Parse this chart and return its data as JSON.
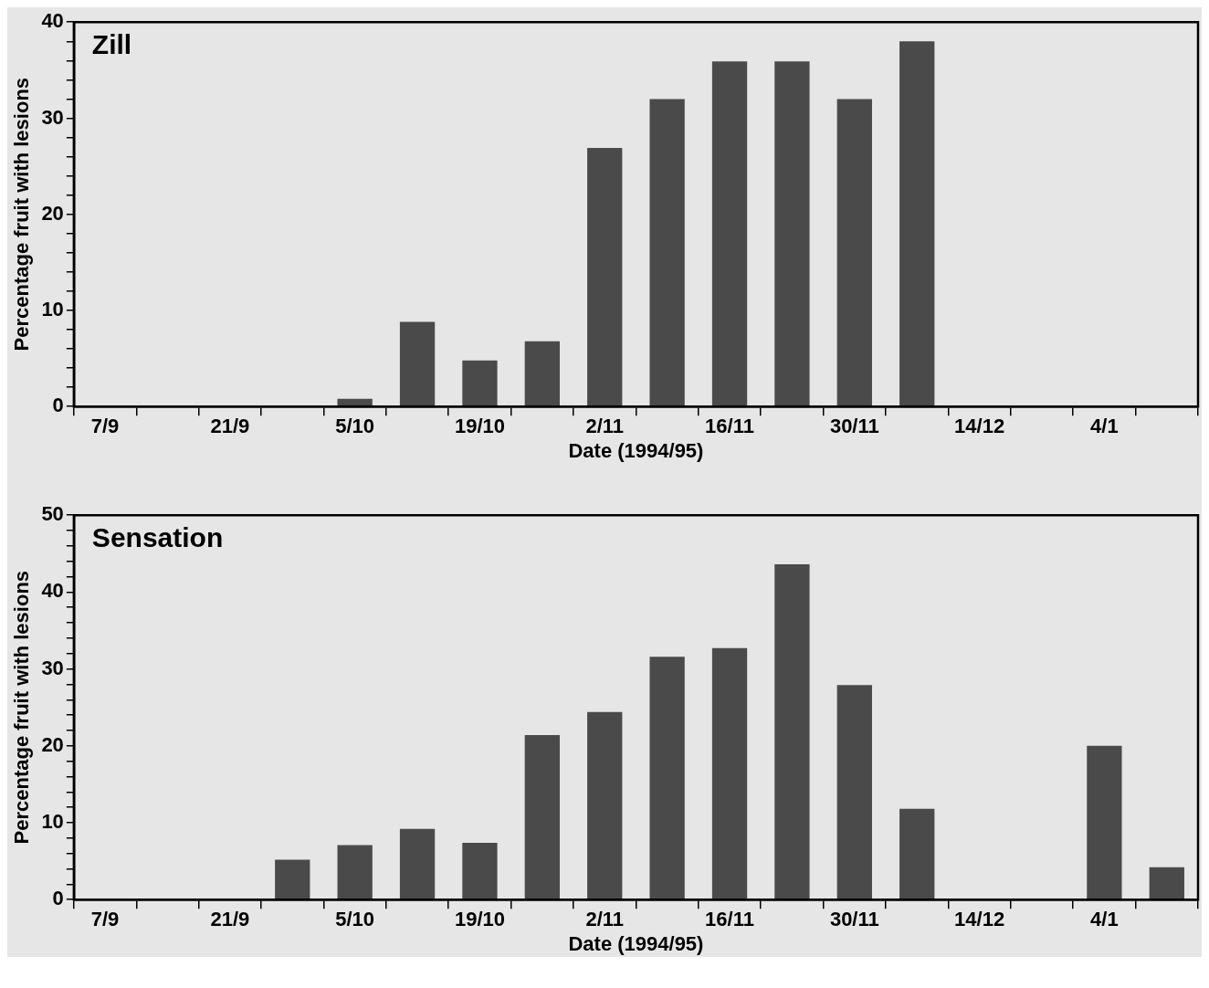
{
  "chart_data": [
    {
      "type": "bar",
      "title": "Zill",
      "xlabel": "Date (1994/95)",
      "ylabel": "Percentage fruit with lesions",
      "categories": [
        "7/9",
        null,
        "21/9",
        null,
        "5/10",
        null,
        "19/10",
        null,
        "2/11",
        null,
        "16/11",
        null,
        "30/11",
        null,
        "14/12",
        null,
        "4/1",
        null
      ],
      "values": [
        null,
        null,
        null,
        null,
        0.8,
        8.8,
        4.8,
        6.8,
        26.9,
        32,
        35.9,
        35.9,
        32,
        38,
        null,
        null,
        null,
        null
      ],
      "color": "#4a4a4a",
      "ylim": [
        0,
        40
      ],
      "yticks": [
        0,
        {
          "value": 2,
          "label": null
        },
        {
          "value": 4,
          "label": null
        },
        {
          "value": 6,
          "label": null
        },
        {
          "value": 8,
          "label": null
        },
        10,
        {
          "value": 12,
          "label": null
        },
        {
          "value": 14,
          "label": null
        },
        {
          "value": 16,
          "label": null
        },
        {
          "value": 18,
          "label": null
        },
        20,
        {
          "value": 22,
          "label": null
        },
        {
          "value": 24,
          "label": null
        },
        {
          "value": 26,
          "label": null
        },
        {
          "value": 28,
          "label": null
        },
        30,
        {
          "value": 32,
          "label": null
        },
        {
          "value": 34,
          "label": null
        },
        {
          "value": 36,
          "label": null
        },
        {
          "value": 38,
          "label": null
        },
        40
      ],
      "grid": false,
      "legend": false
    },
    {
      "type": "bar",
      "title": "Sensation",
      "xlabel": "Date (1994/95)",
      "ylabel": "Percentage fruit with lesions",
      "categories": [
        "7/9",
        null,
        "21/9",
        null,
        "5/10",
        null,
        "19/10",
        null,
        "2/11",
        null,
        "16/11",
        null,
        "30/11",
        null,
        "14/12",
        null,
        "4/1",
        null
      ],
      "values": [
        null,
        null,
        null,
        5.2,
        7.1,
        9.2,
        7.4,
        21.4,
        24.4,
        31.6,
        32.7,
        43.6,
        27.9,
        11.8,
        null,
        null,
        20,
        4.2
      ],
      "color": "#4a4a4a",
      "ylim": [
        0,
        50
      ],
      "yticks": [
        0,
        {
          "value": 2,
          "label": null
        },
        {
          "value": 4,
          "label": null
        },
        {
          "value": 6,
          "label": null
        },
        {
          "value": 8,
          "label": null
        },
        10,
        {
          "value": 12,
          "label": null
        },
        {
          "value": 14,
          "label": null
        },
        {
          "value": 16,
          "label": null
        },
        {
          "value": 18,
          "label": null
        },
        20,
        {
          "value": 22,
          "label": null
        },
        {
          "value": 24,
          "label": null
        },
        {
          "value": 26,
          "label": null
        },
        {
          "value": 28,
          "label": null
        },
        30,
        {
          "value": 32,
          "label": null
        },
        {
          "value": 34,
          "label": null
        },
        {
          "value": 36,
          "label": null
        },
        {
          "value": 38,
          "label": null
        },
        40,
        {
          "value": 42,
          "label": null
        },
        {
          "value": 44,
          "label": null
        },
        {
          "value": 46,
          "label": null
        },
        {
          "value": 48,
          "label": null
        },
        50
      ],
      "grid": false,
      "legend": false
    }
  ]
}
